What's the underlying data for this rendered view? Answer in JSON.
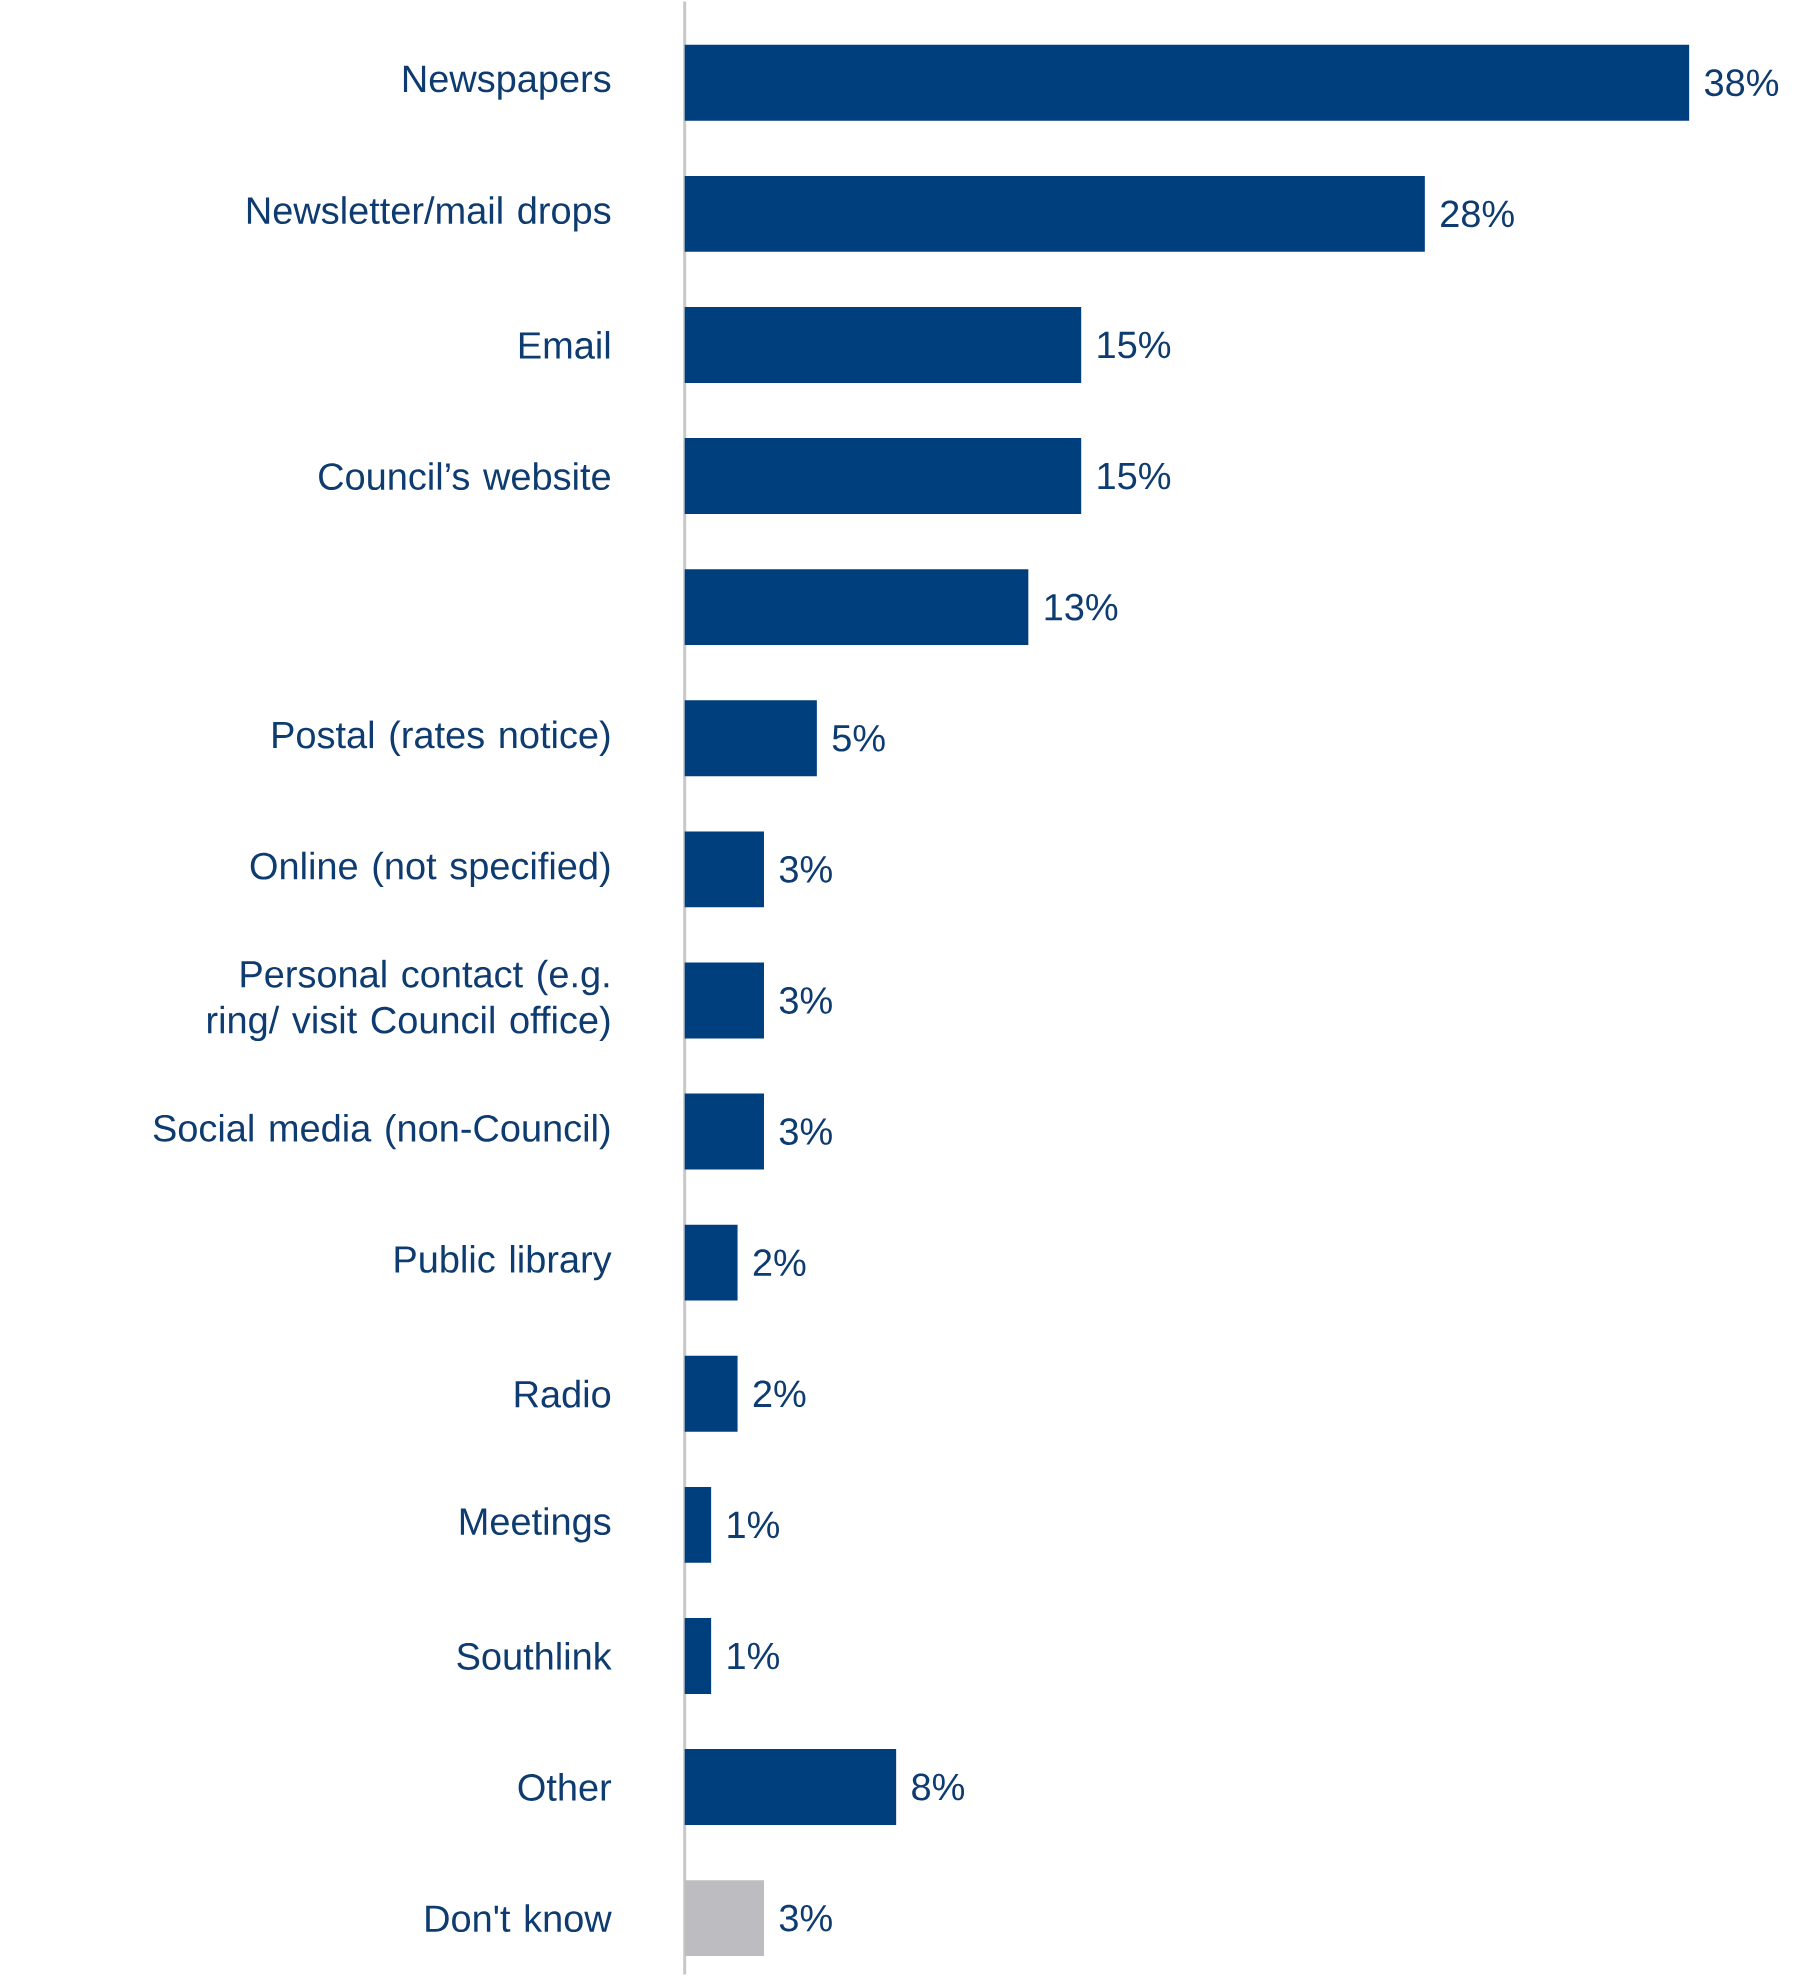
{
  "chart_data": {
    "type": "bar",
    "orientation": "horizontal",
    "categories": [
      "Newspapers",
      "Newsletter/mail drops",
      "Email",
      "Council’s website",
      null,
      "Postal (rates notice)",
      "Online (not specified)",
      "Personal contact (e.g. ring/ visit Council office)",
      "Social media (non-Council)",
      "Public library",
      "Radio",
      "Meetings",
      "Southlink",
      "Other",
      "Don't know"
    ],
    "values": [
      38,
      28,
      15,
      15,
      13,
      5,
      3,
      3,
      3,
      2,
      2,
      1,
      1,
      8,
      3
    ],
    "value_labels": [
      "38%",
      "28%",
      "15%",
      "15%",
      "13%",
      "5%",
      "3%",
      "3%",
      "3%",
      "2%",
      "2%",
      "1%",
      "1%",
      "8%",
      "3%"
    ],
    "colors": [
      "#003f7d",
      "#003f7d",
      "#003f7d",
      "#003f7d",
      "#003f7d",
      "#003f7d",
      "#003f7d",
      "#003f7d",
      "#003f7d",
      "#003f7d",
      "#003f7d",
      "#003f7d",
      "#003f7d",
      "#003f7d",
      "#bdbdc1"
    ]
  }
}
